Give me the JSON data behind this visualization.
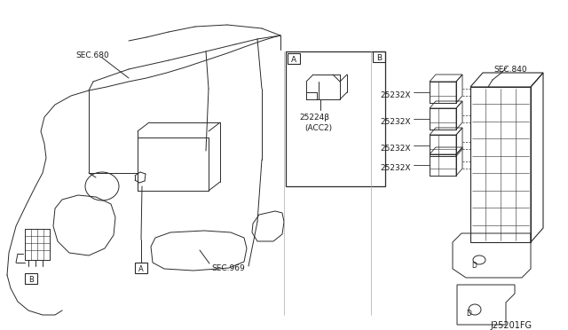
{
  "line_color": "#2a2a2a",
  "text_color": "#1a1a1a",
  "bg_color": "#ffffff",
  "fig_code": "J25201FG",
  "label_sec680": "SEC.680",
  "label_sec969": "SEC.969",
  "label_sec840": "SEC.840",
  "label_25224": "25224β",
  "label_acc2": "(ACC2)",
  "label_25232x": "25232X",
  "node_A": "A",
  "node_B": "B",
  "box_A_label": "A",
  "box_B_label": "B"
}
